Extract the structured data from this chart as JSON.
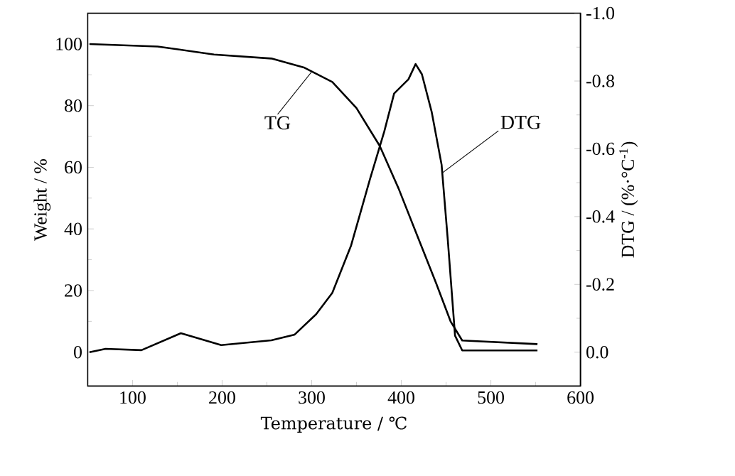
{
  "chart_data": {
    "type": "line",
    "xlabel": "Temperature / ℃",
    "ylabel": "Weight / %",
    "y2label": "DTG / (%·°C$^{-1}$)",
    "xlim": [
      50,
      600
    ],
    "xticks": [
      100,
      200,
      300,
      400,
      500,
      600
    ],
    "ylim": [
      -11,
      110
    ],
    "yticks": [
      0,
      20,
      40,
      60,
      80,
      100
    ],
    "y2lim": [
      0.1,
      -1.0
    ],
    "y2ticks": [
      {
        "value": 0,
        "label": "0.0"
      },
      {
        "value": -0.2,
        "label": "-0.2"
      },
      {
        "value": -0.4,
        "label": "-0.4"
      },
      {
        "value": -0.6,
        "label": "-0.6"
      },
      {
        "value": -0.8,
        "label": "-0.8"
      },
      {
        "value": -1.0,
        "label": "-1.0"
      }
    ],
    "grid": false,
    "legend": false,
    "marker": "none",
    "line_style": "solid",
    "series": [
      {
        "color": "#000000",
        "x": [
          52,
          128,
          191,
          255,
          292,
          323,
          350,
          376,
          397,
          418,
          439,
          455,
          468,
          552
        ],
        "values": [
          100,
          99.2,
          96.6,
          95.3,
          92.3,
          87.7,
          79.2,
          66.9,
          53.1,
          37.7,
          22.3,
          10,
          3.8,
          2.6
        ]
      },
      {
        "color": "#000000",
        "axis": "y2",
        "x": [
          52,
          70,
          110,
          154,
          199,
          255,
          281,
          305,
          323,
          344,
          365,
          381,
          392,
          408,
          416,
          423,
          434,
          445,
          452,
          460,
          468,
          552
        ],
        "values": [
          0,
          -0.01,
          -0.006,
          -0.056,
          -0.021,
          -0.035,
          -0.052,
          -0.112,
          -0.175,
          -0.315,
          -0.51,
          -0.651,
          -0.763,
          -0.805,
          -0.85,
          -0.82,
          -0.708,
          -0.553,
          -0.328,
          -0.049,
          -0.005,
          -0.005
        ]
      }
    ],
    "annotations": [
      {
        "text": "TG",
        "x": 300,
        "y": 91
      },
      {
        "text": "DTG",
        "x": 445,
        "y": 58
      }
    ]
  }
}
